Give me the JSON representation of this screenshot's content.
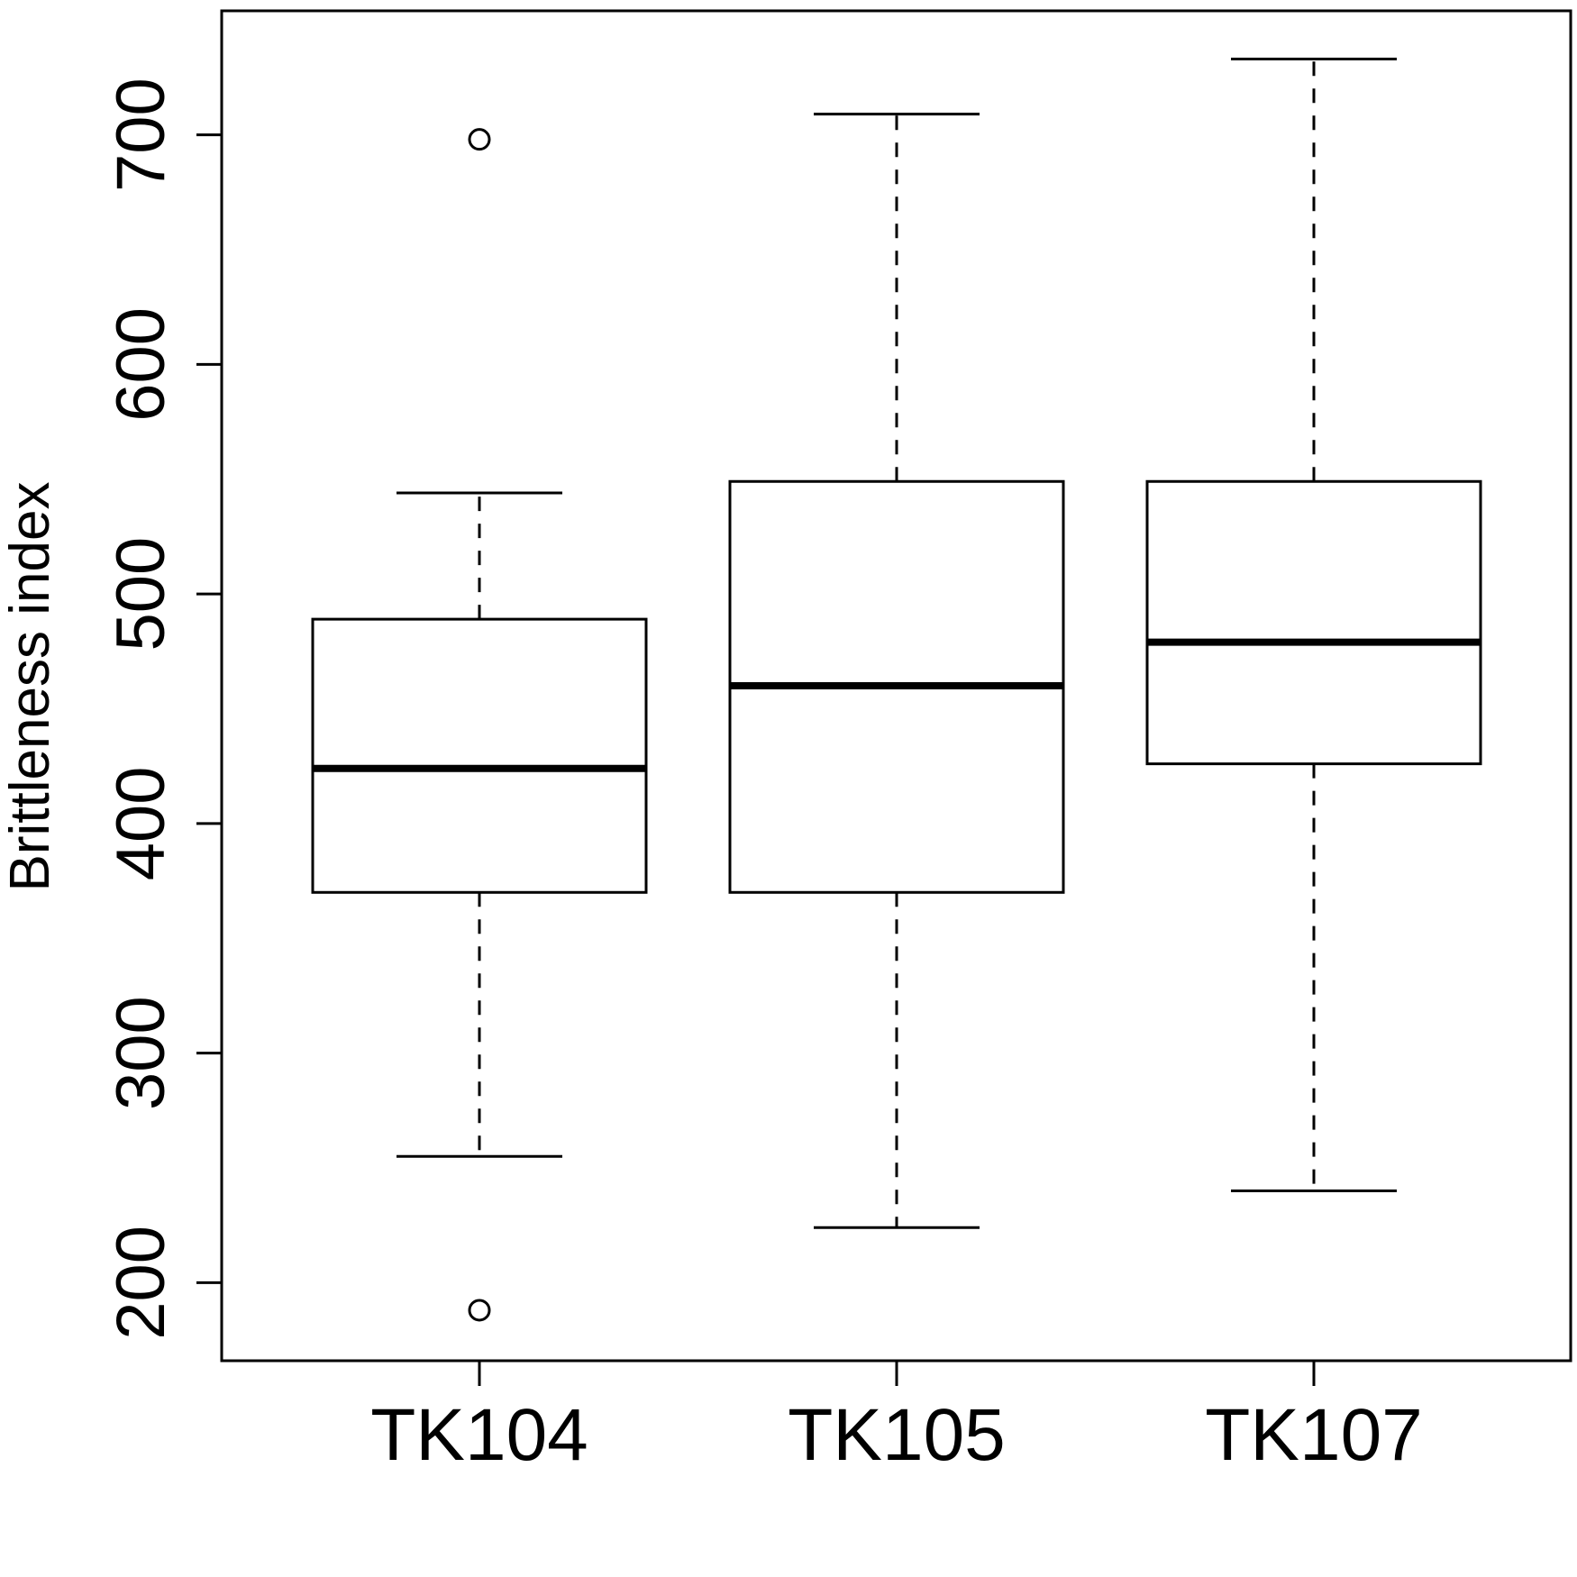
{
  "chart_data": {
    "type": "box",
    "title": "",
    "xlabel": "",
    "ylabel": "Brittleness index",
    "ylim": [
      166,
      754
    ],
    "yticks": [
      200,
      300,
      400,
      500,
      600,
      700
    ],
    "ytick_labels": [
      "200",
      "300",
      "400",
      "500",
      "600",
      "700"
    ],
    "grid": false,
    "legend": "none",
    "colors": {
      "stroke": "#000000",
      "fill": "#ffffff",
      "background": "#ffffff"
    },
    "categories": [
      "TK104",
      "TK105",
      "TK107"
    ],
    "boxes": [
      {
        "name": "TK104",
        "whisker_low": 255,
        "q1": 370,
        "median": 424,
        "q3": 489,
        "whisker_high": 544,
        "outliers": [
          188,
          698
        ]
      },
      {
        "name": "TK105",
        "whisker_low": 224,
        "q1": 370,
        "median": 460,
        "q3": 549,
        "whisker_high": 709,
        "outliers": []
      },
      {
        "name": "TK107",
        "whisker_low": 240,
        "q1": 426,
        "median": 479,
        "q3": 549,
        "whisker_high": 733,
        "outliers": []
      }
    ]
  }
}
